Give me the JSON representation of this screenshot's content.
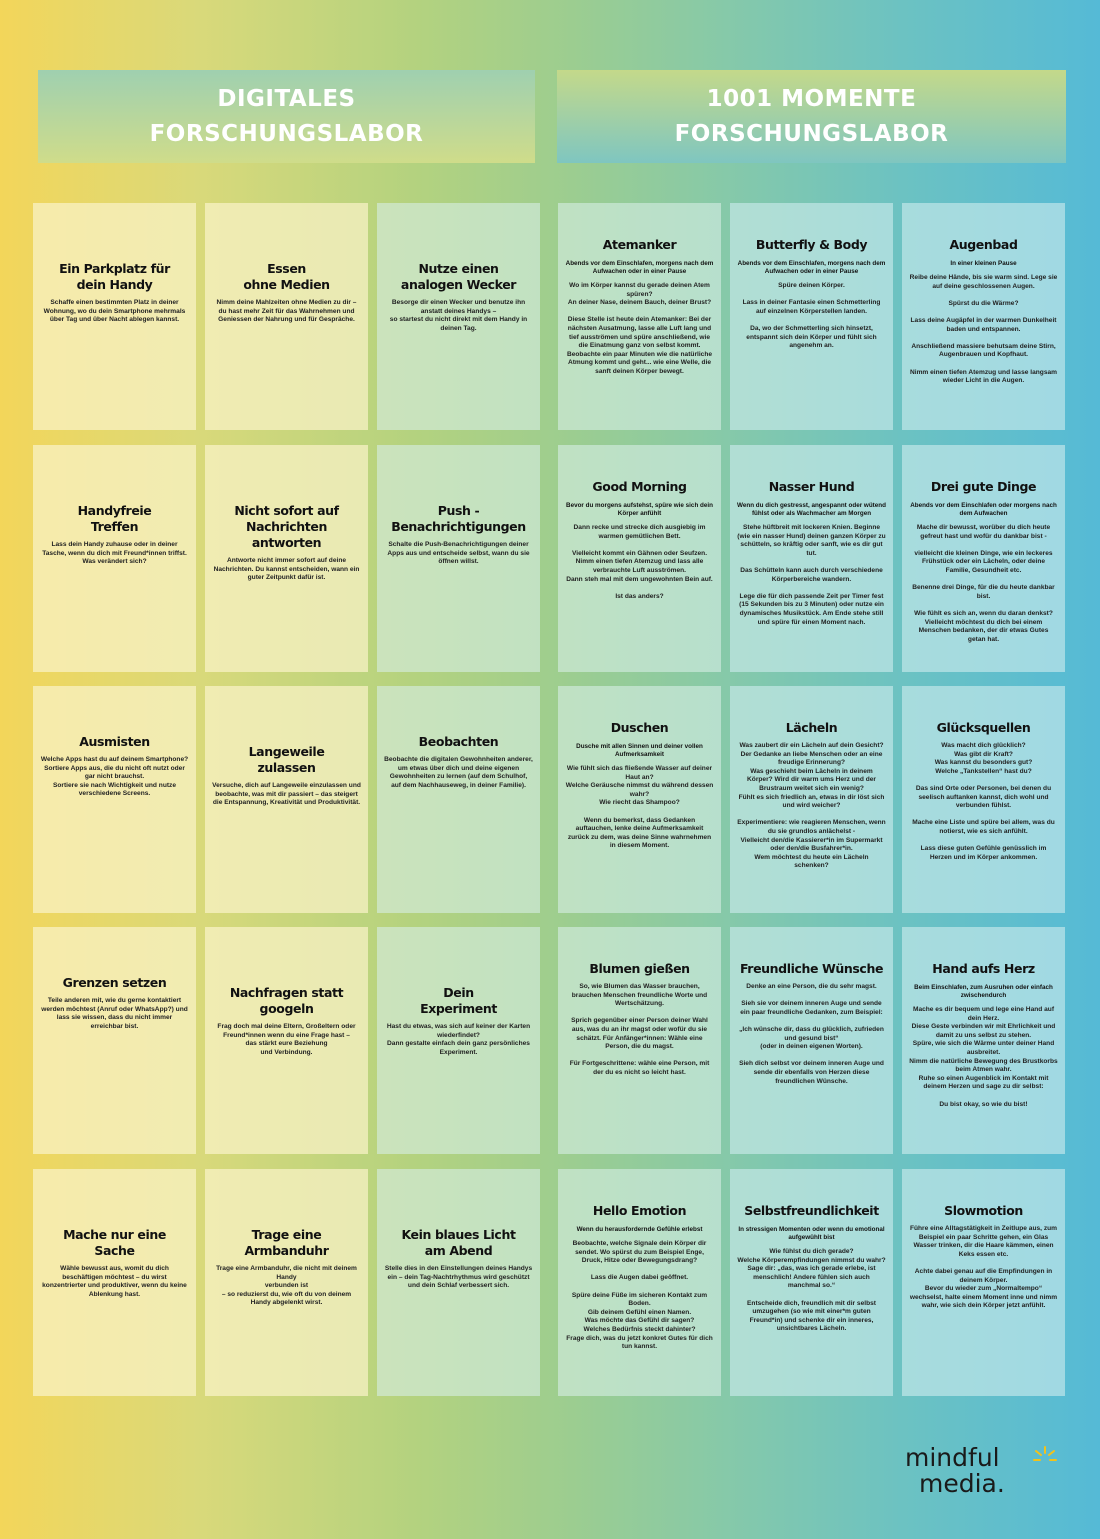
{
  "headers": {
    "left": "DIGITALES\nFORSCHUNGSLABOR",
    "right": "1001 MOMENTE\nFORSCHUNGSLABOR"
  },
  "cards": [
    {
      "title": "Ein Parkplatz für\ndein Handy",
      "lead": "",
      "body": "Schaffe einen bestimmten Platz in deiner Wohnung, wo du dein Smartphone mehrmals über Tag und über Nacht ablegen kannst."
    },
    {
      "title": "Essen\nohne Medien",
      "lead": "",
      "body": "Nimm deine Mahlzeiten ohne Medien zu dir – du hast mehr Zeit für das Wahrnehmen und Geniessen der Nahrung und für Gespräche."
    },
    {
      "title": "Nutze einen\nanalogen Wecker",
      "lead": "",
      "body": "Besorge dir einen Wecker und benutze ihn anstatt deines Handys –\nso startest du nicht direkt mit dem Handy in deinen Tag."
    },
    {
      "title": "Atemanker",
      "lead": "Abends vor dem Einschlafen, morgens nach dem Aufwachen oder in einer Pause",
      "body": "Wo im Körper kannst du gerade deinen Atem spüren?\nAn deiner Nase, deinem Bauch, deiner Brust?\n\nDiese Stelle ist heute dein Atemanker: Bei der nächsten Ausatmung, lasse alle Luft lang und tief ausströmen und spüre anschließend, wie die Einatmung ganz von selbst kommt. Beobachte ein paar Minuten wie die natürliche Atmung kommt und geht... wie eine Welle, die sanft deinen Körper bewegt."
    },
    {
      "title": "Butterfly & Body",
      "lead": "Abends vor dem Einschlafen, morgens nach dem Aufwachen oder in einer Pause",
      "body": "Spüre deinen Körper.\n\nLass in deiner Fantasie einen Schmetterling auf einzelnen Körperstellen landen.\n\nDa, wo der Schmetterling sich hinsetzt, entspannt sich dein Körper und fühlt sich angenehm an."
    },
    {
      "title": "Augenbad",
      "lead": "In einer kleinen Pause",
      "body": "Reibe deine Hände, bis sie warm sind. Lege sie auf deine geschlossenen Augen.\n\nSpürst du die Wärme?\n\nLass deine Augäpfel in der warmen Dunkelheit baden und entspannen.\n\nAnschließend massiere behutsam deine Stirn, Augenbrauen und Kopfhaut.\n\nNimm einen tiefen Atemzug und lasse langsam wieder Licht in die Augen."
    },
    {
      "title": "Handyfreie\nTreffen",
      "lead": "",
      "body": "Lass dein Handy zuhause oder in deiner Tasche, wenn du dich mit Freund*innen triffst.\nWas verändert sich?"
    },
    {
      "title": "Nicht sofort auf\nNachrichten antworten",
      "lead": "",
      "body": "Antworte nicht immer sofort auf deine Nachrichten. Du kannst entscheiden, wann ein guter Zeitpunkt dafür ist."
    },
    {
      "title": "Push -\nBenachrichtigungen",
      "lead": "",
      "body": "Schalte die Push-Benachrichtigungen deiner Apps aus und entscheide selbst, wann du sie öffnen willst."
    },
    {
      "title": "Good Morning",
      "lead": "Bevor du morgens aufstehst, spüre wie sich dein Körper anfühlt",
      "body": "Dann recke und strecke dich ausgiebig im warmen gemütlichen Bett.\n\nVielleicht kommt ein Gähnen oder Seufzen.\nNimm einen tiefen Atemzug und lass alle verbrauchte Luft ausströmen.\nDann steh mal mit dem ungewohnten Bein auf.\n\nIst das anders?"
    },
    {
      "title": "Nasser Hund",
      "lead": "Wenn du dich gestresst, angespannt oder wütend fühlst oder als Wachmacher am Morgen",
      "body": "Stehe hüftbreit mit lockeren Knien. Beginne (wie ein nasser Hund) deinen ganzen Körper zu schütteln, so kräftig oder sanft, wie es dir gut tut.\n\nDas Schütteln kann auch durch verschiedene Körperbereiche wandern.\n\nLege die für dich passende Zeit per Timer fest  (15 Sekunden bis zu 3 Minuten) oder nutze ein dynamisches Musikstück. Am Ende stehe still und spüre für einen Moment nach."
    },
    {
      "title": "Drei gute Dinge",
      "lead": "Abends vor dem Einschlafen oder morgens nach dem Aufwachen",
      "body": "Mache dir bewusst, worüber du dich heute gefreut hast und wofür du dankbar bist -\n\nvielleicht die kleinen Dinge, wie ein leckeres Frühstück oder ein Lächeln, oder deine Familie, Gesundheit etc.\n\nBenenne drei Dinge, für die du heute dankbar bist.\n\nWie fühlt es sich an, wenn du daran denkst? Vielleicht möchtest du dich bei einem Menschen bedanken, der dir etwas Gutes getan hat."
    },
    {
      "title": "Ausmisten",
      "lead": "",
      "body": "Welche Apps hast du auf deinem Smartphone?\nSortiere Apps aus, die du nicht oft nutzt oder gar nicht brauchst.\nSortiere sie nach Wichtigkeit und nutze verschiedene Screens."
    },
    {
      "title": "Langeweile\nzulassen",
      "lead": "",
      "body": "Versuche, dich auf Langeweile einzulassen und beobachte, was mit dir passiert – das steigert die Entspannung, Kreativität und Produktivität."
    },
    {
      "title": "Beobachten",
      "lead": "",
      "body": "Beobachte die digitalen Gewohnheiten anderer, um etwas über dich und deine eigenen Gewohnheiten zu lernen (auf dem Schulhof, auf dem Nachhauseweg, in deiner Familie)."
    },
    {
      "title": "Duschen",
      "lead": "Dusche mit allen Sinnen und deiner vollen Aufmerksamkeit",
      "body": "Wie fühlt sich das fließende Wasser auf deiner Haut an?\nWelche Geräusche nimmst du während dessen wahr?\nWie riecht das Shampoo?\n\nWenn du bemerkst, dass Gedanken auftauchen, lenke deine Aufmerksamkeit zurück zu dem, was deine Sinne wahrnehmen in diesem Moment."
    },
    {
      "title": "Lächeln",
      "lead": "",
      "body": "Was zaubert dir ein Lächeln auf dein Gesicht? Der Gedanke an liebe Menschen oder an eine freudige Erinnerung?\nWas geschieht beim Lächeln in deinem Körper? Wird dir warm ums Herz und der Brustraum weitet sich ein wenig?\nFühlt es sich friedlich an, etwas in dir löst sich und wird weicher?\n\nExperimentiere: wie reagieren Menschen, wenn du sie grundlos anlächelst -\nVielleicht den/die Kassierer*in im Supermarkt oder den/die Busfahrer*in.\nWem möchtest du heute ein Lächeln schenken?"
    },
    {
      "title": "Glücksquellen",
      "lead": "",
      "body": "Was macht dich glücklich?\nWas gibt dir Kraft?\nWas kannst du besonders gut?\nWelche „Tankstellen“ hast du?\n\nDas sind Orte oder Personen, bei denen du seelisch auftanken kannst, dich wohl und verbunden fühlst.\n\nMache eine Liste und spüre bei allem, was du notierst, wie es sich anfühlt.\n\nLass diese guten Gefühle genüsslich im Herzen und im Körper ankommen."
    },
    {
      "title": "Grenzen setzen",
      "lead": "",
      "body": "Teile anderen mit, wie du gerne kontaktiert werden möchtest (Anruf oder WhatsApp?) und lass sie wissen, dass du nicht immer erreichbar bist."
    },
    {
      "title": "Nachfragen statt\ngoogeln",
      "lead": "",
      "body": "Frag doch mal deine Eltern, Großeltern oder Freund*innen wenn du eine Frage hast –\ndas stärkt eure Beziehung\nund Verbindung."
    },
    {
      "title": "Dein\nExperiment",
      "lead": "",
      "body": "Hast du etwas, was sich auf keiner der Karten wiederfindet?\nDann gestalte einfach dein ganz persönliches Experiment."
    },
    {
      "title": "Blumen gießen",
      "lead": "",
      "body": "So, wie Blumen das Wasser brauchen, brauchen Menschen freundliche Worte und Wertschätzung.\n\nSprich gegenüber einer Person deiner Wahl aus, was du an ihr magst oder wofür du sie schätzt. Für Anfänger*innen: Wähle eine Person, die du magst.\n\nFür Fortgeschrittene: wähle eine Person, mit der du es nicht so leicht hast."
    },
    {
      "title": "Freundliche Wünsche",
      "lead": "",
      "body": "Denke an eine Person, die du sehr magst.\n\nSieh sie vor deinem inneren Auge und sende ein paar freundliche Gedanken, zum Beispiel:\n\n„Ich wünsche dir, dass du glücklich, zufrieden und gesund bist“\n(oder in deinen eigenen Worten).\n\nSieh dich selbst vor deinem inneren Auge und sende dir ebenfalls von Herzen diese freundlichen Wünsche."
    },
    {
      "title": "Hand aufs Herz",
      "lead": "Beim Einschlafen, zum Ausruhen oder einfach zwischendurch",
      "body": "Mache es dir bequem und lege eine Hand auf dein Herz.\nDiese Geste verbinden wir mit Ehrlichkeit und damit zu uns selbst zu stehen.\nSpüre, wie sich die Wärme unter deiner Hand ausbreitet.\nNimm die natürliche Bewegung des Brustkorbs beim Atmen wahr.\nRuhe so einen Augenblick im Kontakt mit deinem Herzen und sage zu dir selbst:\n\nDu bist okay, so wie du bist!"
    },
    {
      "title": "Mache nur eine\nSache",
      "lead": "",
      "body": "Wähle bewusst aus, womit du dich beschäftigen möchtest – du wirst konzentrierter und produktiver, wenn du keine Ablenkung hast."
    },
    {
      "title": "Trage eine\nArmbanduhr",
      "lead": "",
      "body": "Trage eine Armbanduhr, die nicht mit deinem Handy\nverbunden ist\n– so reduzierst du, wie oft du von deinem Handy abgelenkt wirst."
    },
    {
      "title": "Kein blaues Licht\nam Abend",
      "lead": "",
      "body": "Stelle dies in den Einstellungen deines Handys ein – dein Tag-Nachtrhythmus wird geschützt und dein Schlaf verbessert sich."
    },
    {
      "title": "Hello Emotion",
      "lead": "Wenn du herausfordernde Gefühle erlebst",
      "body": "Beobachte, welche Signale dein Körper dir sendet. Wo spürst du zum Beispiel Enge, Druck, Hitze oder Bewegungsdrang?\n\nLass die Augen dabei geöffnet.\n\nSpüre deine Füße im sicheren Kontakt zum Boden.\nGib deinem Gefühl einen Namen.\nWas möchte das Gefühl dir sagen?\nWelches Bedürfnis steckt dahinter?\nFrage dich, was du jetzt konkret Gutes für dich tun kannst."
    },
    {
      "title": "Selbstfreundlichkeit",
      "lead": "In stressigen Momenten oder wenn du emotional aufgewühlt bist",
      "body": "Wie fühlst du dich gerade?\nWelche Körperempfindungen nimmst du wahr?\nSage dir: „das, was ich gerade erlebe, ist menschlich! Andere fühlen sich auch manchmal so.“\n\nEntscheide dich, freundlich mit dir selbst umzugehen (so wie mit einer*m guten Freund*in) und schenke dir ein inneres, unsichtbares Lächeln."
    },
    {
      "title": "Slowmotion",
      "lead": "",
      "body": "Führe eine Alltagstätigkeit in Zeitlupe aus, zum Beispiel ein paar Schritte gehen, ein Glas Wasser trinken, dir die Haare kämmen, einen Keks essen etc.\n\nAchte dabei genau auf die Empfindungen in deinem Körper.\nBevor du wieder zum „Normaltempo“ wechselst, halte einem Moment inne und nimm wahr, wie sich dein Körper jetzt anfühlt."
    }
  ],
  "logo": {
    "line1": "mindful",
    "line2": "media."
  },
  "colors": {
    "gradient_left": "#f3d65a",
    "gradient_mid": "#9ccd90",
    "gradient_right": "#55bad6",
    "header_text": "#ffffff"
  }
}
